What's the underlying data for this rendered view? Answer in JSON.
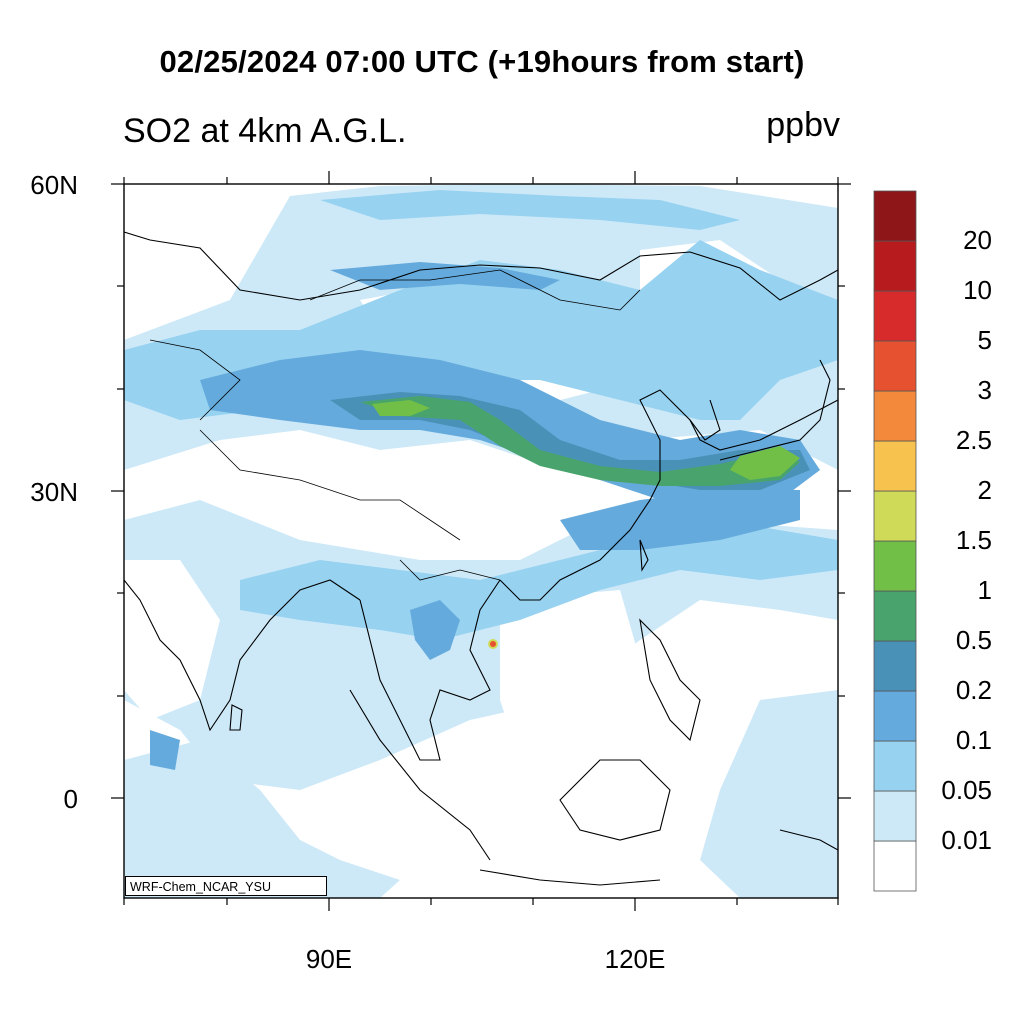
{
  "title": "02/25/2024 07:00 UTC (+19hours from start)",
  "variable_label": "SO2 at 4km A.G.L.",
  "unit_label": "ppbv",
  "credit": "WRF-Chem_NCAR_YSU",
  "lat_ticks": [
    {
      "label": "60N",
      "value": 60
    },
    {
      "label": "30N",
      "value": 30
    },
    {
      "label": "0",
      "value": 0
    }
  ],
  "lon_ticks": [
    {
      "label": "90E",
      "value": 90
    },
    {
      "label": "120E",
      "value": 120
    }
  ],
  "colorbar": {
    "levels": [
      "0.01",
      "0.05",
      "0.1",
      "0.2",
      "0.5",
      "1",
      "1.5",
      "2",
      "2.5",
      "3",
      "5",
      "10",
      "20"
    ],
    "colors": [
      "#ffffff",
      "#cde9f8",
      "#97d2f0",
      "#64aadc",
      "#4a91b8",
      "#48a46c",
      "#72bf48",
      "#cfdb58",
      "#f7c24e",
      "#f3893a",
      "#e6522f",
      "#d72a2a",
      "#b71b1e",
      "#8e1518"
    ]
  }
}
